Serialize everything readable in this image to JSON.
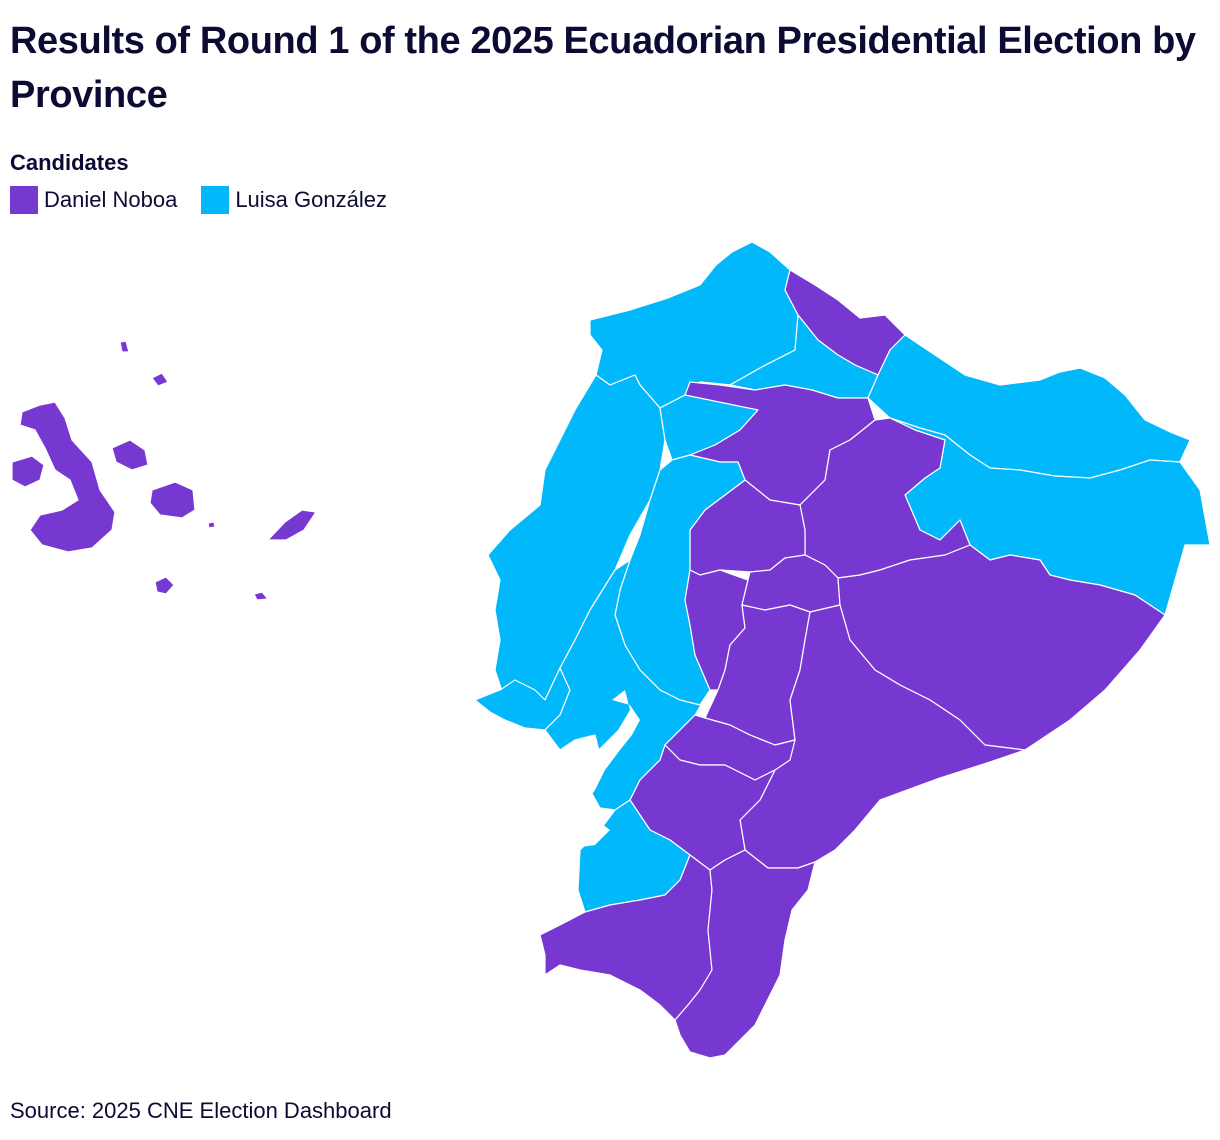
{
  "title": "Results of Round 1 of the 2025 Ecuadorian Presidential Election by Province",
  "legend": {
    "title": "Candidates",
    "items": [
      {
        "key": "noboa",
        "label": "Daniel Noboa",
        "color": "#7638d1"
      },
      {
        "key": "gonzalez",
        "label": "Luisa González",
        "color": "#00b8fa"
      }
    ]
  },
  "source": "Source: 2025 CNE Election Dashboard",
  "regions": [
    {
      "name": "Galápagos",
      "winner": "noboa"
    },
    {
      "name": "Esmeraldas",
      "winner": "gonzalez"
    },
    {
      "name": "Carchi",
      "winner": "noboa"
    },
    {
      "name": "Imbabura",
      "winner": "gonzalez"
    },
    {
      "name": "Sucumbíos",
      "winner": "gonzalez"
    },
    {
      "name": "Manabí",
      "winner": "gonzalez"
    },
    {
      "name": "Santo Domingo de los Tsáchilas",
      "winner": "gonzalez"
    },
    {
      "name": "Pichincha",
      "winner": "noboa"
    },
    {
      "name": "Orellana",
      "winner": "gonzalez"
    },
    {
      "name": "Napo",
      "winner": "noboa"
    },
    {
      "name": "Cotopaxi",
      "winner": "noboa"
    },
    {
      "name": "Los Ríos",
      "winner": "gonzalez"
    },
    {
      "name": "Santa Elena",
      "winner": "gonzalez"
    },
    {
      "name": "Guayas",
      "winner": "gonzalez"
    },
    {
      "name": "Bolívar",
      "winner": "noboa"
    },
    {
      "name": "Tungurahua",
      "winner": "noboa"
    },
    {
      "name": "Chimborazo",
      "winner": "noboa"
    },
    {
      "name": "Pastaza",
      "winner": "noboa"
    },
    {
      "name": "Morona Santiago",
      "winner": "noboa"
    },
    {
      "name": "Cañar",
      "winner": "noboa"
    },
    {
      "name": "Azuay",
      "winner": "noboa"
    },
    {
      "name": "El Oro",
      "winner": "gonzalez"
    },
    {
      "name": "Loja",
      "winner": "noboa"
    },
    {
      "name": "Zamora Chinchipe",
      "winner": "noboa"
    }
  ]
}
